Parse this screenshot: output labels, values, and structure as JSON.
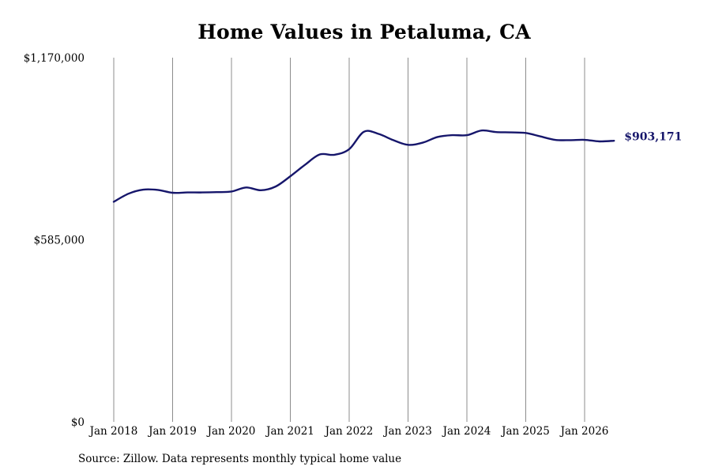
{
  "source_note": "Source: Zillow. Data represents monthly typical home value",
  "chart_data": {
    "type": "line",
    "title": "Home Values in Petaluma, CA",
    "xlabel": "",
    "ylabel": "",
    "grid": "vertical",
    "ylim": [
      0,
      1170000
    ],
    "xlim": [
      "2018-01",
      "2026-07"
    ],
    "y_ticks": [
      {
        "value": 0,
        "label": "$0"
      },
      {
        "value": 585000,
        "label": "$585,000"
      },
      {
        "value": 1170000,
        "label": "$1,170,000"
      }
    ],
    "x_ticks": [
      {
        "value": "2018-01",
        "label": "Jan 2018"
      },
      {
        "value": "2019-01",
        "label": "Jan 2019"
      },
      {
        "value": "2020-01",
        "label": "Jan 2020"
      },
      {
        "value": "2021-01",
        "label": "Jan 2021"
      },
      {
        "value": "2022-01",
        "label": "Jan 2022"
      },
      {
        "value": "2023-01",
        "label": "Jan 2023"
      },
      {
        "value": "2024-01",
        "label": "Jan 2024"
      },
      {
        "value": "2025-01",
        "label": "Jan 2025"
      },
      {
        "value": "2026-01",
        "label": "Jan 2026"
      }
    ],
    "series": [
      {
        "color": "#16166b",
        "end_label": "$903,171",
        "points": [
          [
            "2018-01",
            707000
          ],
          [
            "2018-04",
            733000
          ],
          [
            "2018-07",
            746000
          ],
          [
            "2018-10",
            745000
          ],
          [
            "2019-01",
            736000
          ],
          [
            "2019-04",
            737000
          ],
          [
            "2019-07",
            737000
          ],
          [
            "2019-10",
            738000
          ],
          [
            "2020-01",
            740000
          ],
          [
            "2020-04",
            753000
          ],
          [
            "2020-07",
            744000
          ],
          [
            "2020-10",
            756000
          ],
          [
            "2021-01",
            789000
          ],
          [
            "2021-04",
            826000
          ],
          [
            "2021-07",
            859000
          ],
          [
            "2021-10",
            858000
          ],
          [
            "2022-01",
            876000
          ],
          [
            "2022-04",
            932000
          ],
          [
            "2022-07",
            925000
          ],
          [
            "2022-10",
            905000
          ],
          [
            "2023-01",
            890000
          ],
          [
            "2023-04",
            897000
          ],
          [
            "2023-07",
            915000
          ],
          [
            "2023-10",
            921000
          ],
          [
            "2024-01",
            921000
          ],
          [
            "2024-04",
            936000
          ],
          [
            "2024-07",
            931000
          ],
          [
            "2024-10",
            930000
          ],
          [
            "2025-01",
            928000
          ],
          [
            "2025-04",
            917000
          ],
          [
            "2025-07",
            906000
          ],
          [
            "2025-10",
            905000
          ],
          [
            "2026-01",
            906000
          ],
          [
            "2026-04",
            901000
          ],
          [
            "2026-07",
            903171
          ]
        ]
      }
    ]
  }
}
